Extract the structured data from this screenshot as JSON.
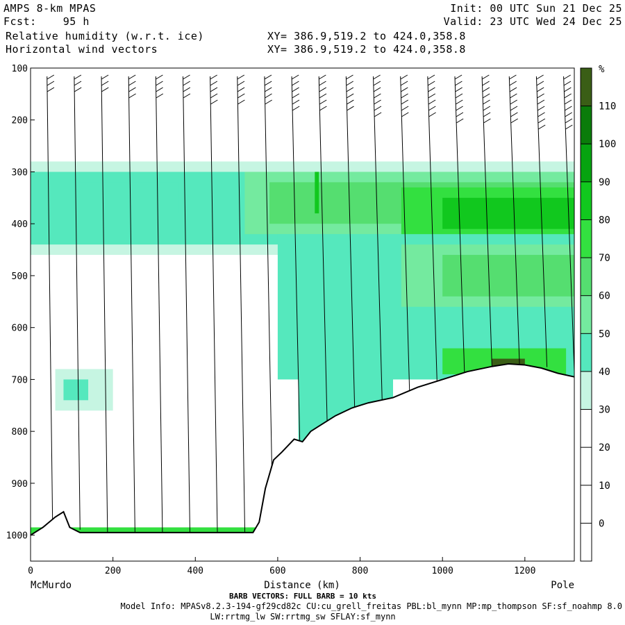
{
  "header": {
    "line1_left": "AMPS 8-km MPAS",
    "line2_left": "Fcst:    95 h",
    "line1_right": "Init: 00 UTC Sun 21 Dec 25",
    "line2_right": "Valid: 23 UTC Wed 24 Dec 25",
    "field1": "Relative humidity (w.r.t. ice)",
    "field2": "Horizontal wind vectors",
    "xy1": "XY= 386.9,519.2 to 424.0,358.8",
    "xy2": "XY= 386.9,519.2 to 424.0,358.8"
  },
  "footer": {
    "left_endpoint": "McMurdo",
    "right_endpoint": "Pole",
    "barb_note": "BARB VECTORS:  FULL BARB = 10 kts",
    "model_info": "Model Info: MPASv8.2.3-194-gf29cd82c CU:cu_grell_freitas PBL:bl_mynn MP:mp_thompson SF:sf_noahmp 8.0",
    "model_info2": "LW:rrtmg_lw SW:rrtmg_sw SFLAY:sf_mynn"
  },
  "chart_data": {
    "type": "heatmap",
    "xlabel": "Distance (km)",
    "ylabel": "",
    "xlim": [
      0,
      1320
    ],
    "ylim": [
      1050,
      100
    ],
    "x_ticks": [
      0,
      200,
      400,
      600,
      800,
      1000,
      1200
    ],
    "y_ticks": [
      100,
      200,
      300,
      400,
      500,
      600,
      700,
      800,
      900,
      1000
    ],
    "colorbar": {
      "unit": "%",
      "levels": [
        -10,
        0,
        10,
        20,
        30,
        40,
        50,
        60,
        70,
        80,
        90,
        100,
        110,
        120
      ],
      "tick_labels": [
        0,
        10,
        20,
        30,
        40,
        50,
        60,
        70,
        80,
        90,
        100,
        110
      ],
      "colors": [
        "#ffffff",
        "#ffffff",
        "#ffffff",
        "#ffffff",
        "#c6f5e2",
        "#55e8bd",
        "#74ea9f",
        "#55de70",
        "#33e040",
        "#11c81e",
        "#06a310",
        "#0a7c0a",
        "#3a5e16",
        "#cc2e00"
      ]
    },
    "terrain_pressure": [
      [
        0,
        1000
      ],
      [
        30,
        985
      ],
      [
        60,
        965
      ],
      [
        80,
        955
      ],
      [
        95,
        985
      ],
      [
        120,
        995
      ],
      [
        200,
        995
      ],
      [
        300,
        995
      ],
      [
        400,
        995
      ],
      [
        500,
        995
      ],
      [
        540,
        995
      ],
      [
        555,
        975
      ],
      [
        570,
        910
      ],
      [
        590,
        855
      ],
      [
        610,
        840
      ],
      [
        640,
        815
      ],
      [
        660,
        820
      ],
      [
        680,
        800
      ],
      [
        700,
        790
      ],
      [
        720,
        780
      ],
      [
        740,
        770
      ],
      [
        780,
        755
      ],
      [
        820,
        745
      ],
      [
        880,
        735
      ],
      [
        940,
        715
      ],
      [
        1000,
        700
      ],
      [
        1060,
        685
      ],
      [
        1120,
        675
      ],
      [
        1160,
        670
      ],
      [
        1200,
        672
      ],
      [
        1240,
        678
      ],
      [
        1280,
        688
      ],
      [
        1320,
        695
      ]
    ],
    "rh_regions": [
      {
        "x": [
          0,
          1320
        ],
        "p": [
          280,
          460
        ],
        "rh": 35
      },
      {
        "x": [
          0,
          1320
        ],
        "p": [
          300,
          440
        ],
        "rh": 45
      },
      {
        "x": [
          100,
          360
        ],
        "p": [
          320,
          380
        ],
        "rh": 45
      },
      {
        "x": [
          520,
          1320
        ],
        "p": [
          300,
          420
        ],
        "rh": 55
      },
      {
        "x": [
          580,
          1320
        ],
        "p": [
          320,
          400
        ],
        "rh": 65
      },
      {
        "x": [
          900,
          1320
        ],
        "p": [
          330,
          430
        ],
        "rh": 75
      },
      {
        "x": [
          1000,
          1320
        ],
        "p": [
          350,
          410
        ],
        "rh": 82
      },
      {
        "x": [
          690,
          700
        ],
        "p": [
          300,
          380
        ],
        "rh": 85
      },
      {
        "x": [
          600,
          1320
        ],
        "p": [
          420,
          700
        ],
        "rh": 40
      },
      {
        "x": [
          900,
          1320
        ],
        "p": [
          440,
          560
        ],
        "rh": 50
      },
      {
        "x": [
          1000,
          1320
        ],
        "p": [
          460,
          540
        ],
        "rh": 60
      },
      {
        "x": [
          650,
          880
        ],
        "p": [
          600,
          830
        ],
        "rh": 45
      },
      {
        "x": [
          1000,
          1300
        ],
        "p": [
          640,
          690
        ],
        "rh": 75
      },
      {
        "x": [
          1120,
          1200
        ],
        "p": [
          660,
          680
        ],
        "rh": 115
      },
      {
        "x": [
          60,
          200
        ],
        "p": [
          680,
          760
        ],
        "rh": 35
      },
      {
        "x": [
          80,
          140
        ],
        "p": [
          700,
          740
        ],
        "rh": 45
      },
      {
        "x": [
          0,
          560
        ],
        "p": [
          985,
          1000
        ],
        "rh": 75
      }
    ]
  }
}
